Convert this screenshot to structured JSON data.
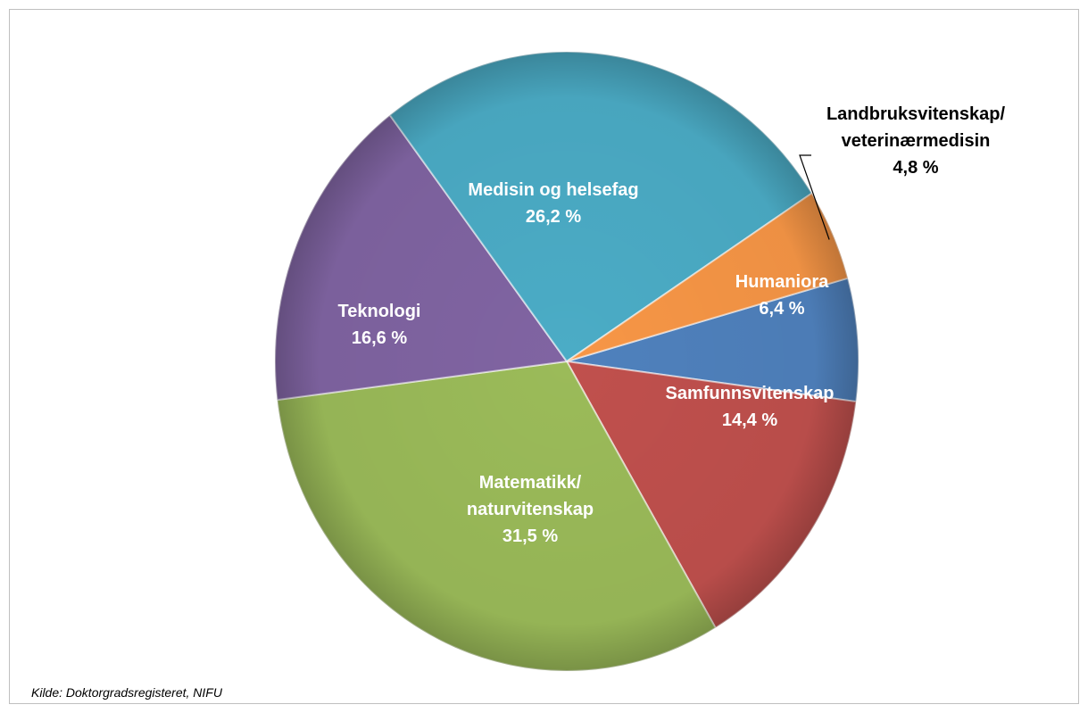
{
  "chart_data": {
    "type": "pie",
    "slices": [
      {
        "label_lines": [
          "Humaniora",
          "6,4 %"
        ],
        "value": 6.4,
        "color": "#4f81bd",
        "label_color": "#ffffff"
      },
      {
        "label_lines": [
          "Samfunnsvitenskap",
          "14,4 %"
        ],
        "value": 14.4,
        "color": "#c0504d",
        "label_color": "#ffffff"
      },
      {
        "label_lines": [
          "Matematikk/",
          "naturvitenskap",
          "31,5 %"
        ],
        "value": 31.5,
        "color": "#9bbb59",
        "label_color": "#ffffff"
      },
      {
        "label_lines": [
          "Teknologi",
          "16,6 %"
        ],
        "value": 16.6,
        "color": "#8064a2",
        "label_color": "#ffffff"
      },
      {
        "label_lines": [
          "Medisin og helsefag",
          "26,2 %"
        ],
        "value": 26.2,
        "color": "#4bacc6",
        "label_color": "#ffffff"
      },
      {
        "label_lines": [
          "Landbruksvitenskap/",
          "veterinærmedisin",
          "4,8 %"
        ],
        "value": 4.8,
        "color": "#f79646",
        "label_color": "#000000"
      }
    ],
    "legend": "none",
    "source": "Kilde: Doktorgradsregisteret, NIFU"
  }
}
